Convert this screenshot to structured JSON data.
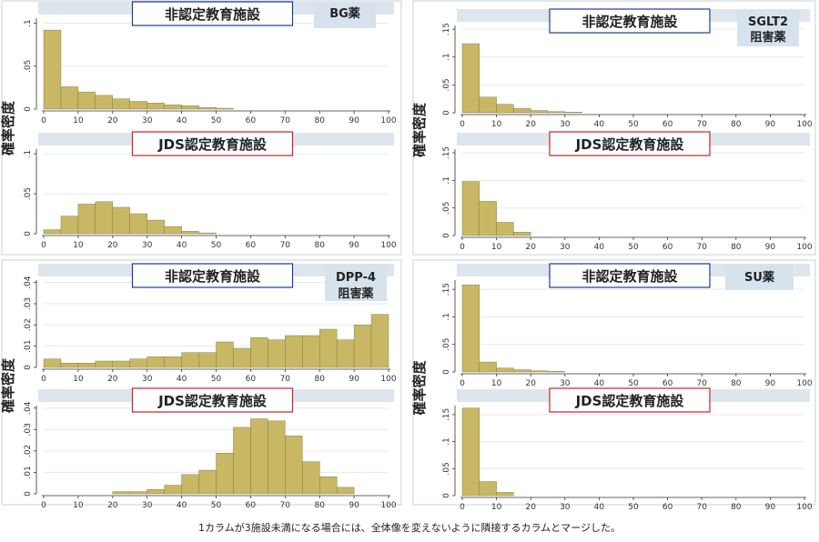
{
  "footnote": "1カラムが3施設未満になる場合には、全体像を変えないように隣接するカラムとマージした。",
  "colors": {
    "bar_fill": "#c8b866",
    "bar_stroke": "#7a6c2a",
    "strip": "#dde6ec",
    "badge": "#d7e3ec",
    "title_border_blue": "#1f3c8c",
    "title_border_red": "#c0262c"
  },
  "chart_data": [
    {
      "type": "bar",
      "drug": "BG薬",
      "ylabel": "確率密度",
      "x_ticks": [
        0,
        10,
        20,
        30,
        40,
        50,
        60,
        70,
        80,
        90,
        100
      ],
      "xlim": [
        0,
        100
      ],
      "bin_width": 5,
      "panels": [
        {
          "title": "非認定教育施設",
          "y_ticks": [
            0,
            0.05,
            0.1
          ],
          "y_tick_labels": [
            "0",
            ".05",
            ".1"
          ],
          "ylim": [
            0,
            0.108
          ],
          "bins": [
            0,
            5,
            10,
            15,
            20,
            25,
            30,
            35,
            40,
            45,
            50
          ],
          "values": [
            0.092,
            0.026,
            0.02,
            0.016,
            0.012,
            0.009,
            0.007,
            0.005,
            0.004,
            0.002,
            0.001
          ]
        },
        {
          "title": "JDS認定教育施設",
          "y_ticks": [
            0,
            0.05,
            0.1
          ],
          "y_tick_labels": [
            "0",
            ".05",
            ".1"
          ],
          "ylim": [
            0,
            0.108
          ],
          "bins": [
            0,
            5,
            10,
            15,
            20,
            25,
            30,
            35,
            40,
            45
          ],
          "values": [
            0.005,
            0.022,
            0.037,
            0.04,
            0.033,
            0.025,
            0.017,
            0.009,
            0.003,
            0.001
          ]
        }
      ]
    },
    {
      "type": "bar",
      "drug": "SGLT2阻害薬",
      "ylabel": "確率密度",
      "x_ticks": [
        0,
        10,
        20,
        30,
        40,
        50,
        60,
        70,
        80,
        90,
        100
      ],
      "xlim": [
        0,
        100
      ],
      "bin_width": 5,
      "panels": [
        {
          "title": "非認定教育施設",
          "y_ticks": [
            0,
            0.05,
            0.1,
            0.15
          ],
          "y_tick_labels": [
            "0",
            ".05",
            ".1",
            ".15"
          ],
          "ylim": [
            0,
            0.16
          ],
          "bins": [
            0,
            5,
            10,
            15,
            20,
            25,
            30
          ],
          "values": [
            0.124,
            0.028,
            0.015,
            0.008,
            0.004,
            0.002,
            0.001
          ]
        },
        {
          "title": "JDS認定教育施設",
          "y_ticks": [
            0,
            0.05,
            0.1,
            0.15
          ],
          "y_tick_labels": [
            "0",
            ".05",
            ".1",
            ".15"
          ],
          "ylim": [
            0,
            0.16
          ],
          "bins": [
            0,
            5,
            10,
            15
          ],
          "values": [
            0.098,
            0.062,
            0.024,
            0.006
          ]
        }
      ]
    },
    {
      "type": "bar",
      "drug": "DPP-4阻害薬",
      "ylabel": "確率密度",
      "x_ticks": [
        0,
        10,
        20,
        30,
        40,
        50,
        60,
        70,
        80,
        90,
        100
      ],
      "xlim": [
        0,
        100
      ],
      "bin_width": 5,
      "panels": [
        {
          "title": "非認定教育施設",
          "y_ticks": [
            0,
            0.01,
            0.02,
            0.03,
            0.04
          ],
          "y_tick_labels": [
            "0",
            ".01",
            ".02",
            ".03",
            ".04"
          ],
          "ylim": [
            0,
            0.042
          ],
          "bins": [
            0,
            5,
            10,
            15,
            20,
            25,
            30,
            35,
            40,
            45,
            50,
            55,
            60,
            65,
            70,
            75,
            80,
            85,
            90,
            95
          ],
          "values": [
            0.004,
            0.002,
            0.002,
            0.003,
            0.003,
            0.004,
            0.005,
            0.005,
            0.007,
            0.007,
            0.012,
            0.009,
            0.014,
            0.013,
            0.015,
            0.015,
            0.018,
            0.013,
            0.02,
            0.025
          ]
        },
        {
          "title": "JDS認定教育施設",
          "y_ticks": [
            0,
            0.01,
            0.02,
            0.03,
            0.04
          ],
          "y_tick_labels": [
            "0",
            ".01",
            ".02",
            ".03",
            ".04"
          ],
          "ylim": [
            0,
            0.042
          ],
          "bins": [
            20,
            25,
            30,
            35,
            40,
            45,
            50,
            55,
            60,
            65,
            70,
            75,
            80,
            85
          ],
          "values": [
            0.001,
            0.001,
            0.002,
            0.004,
            0.009,
            0.011,
            0.019,
            0.031,
            0.035,
            0.034,
            0.027,
            0.015,
            0.008,
            0.003
          ]
        }
      ]
    },
    {
      "type": "bar",
      "drug": "SU薬",
      "ylabel": "確率密度",
      "x_ticks": [
        0,
        10,
        20,
        30,
        40,
        50,
        60,
        70,
        80,
        90,
        100
      ],
      "xlim": [
        0,
        100
      ],
      "bin_width": 5,
      "panels": [
        {
          "title": "非認定教育施設",
          "y_ticks": [
            0,
            0.05,
            0.1,
            0.15
          ],
          "y_tick_labels": [
            "0",
            ".05",
            ".1",
            ".15"
          ],
          "ylim": [
            0,
            0.17
          ],
          "bins": [
            0,
            5,
            10,
            15,
            20,
            25
          ],
          "values": [
            0.158,
            0.018,
            0.007,
            0.004,
            0.002,
            0.001
          ]
        },
        {
          "title": "JDS認定教育施設",
          "y_ticks": [
            0,
            0.05,
            0.1,
            0.15
          ],
          "y_tick_labels": [
            "0",
            ".05",
            ".1",
            ".15"
          ],
          "ylim": [
            0,
            0.17
          ],
          "bins": [
            0,
            5,
            10
          ],
          "values": [
            0.162,
            0.026,
            0.006
          ]
        }
      ]
    }
  ]
}
